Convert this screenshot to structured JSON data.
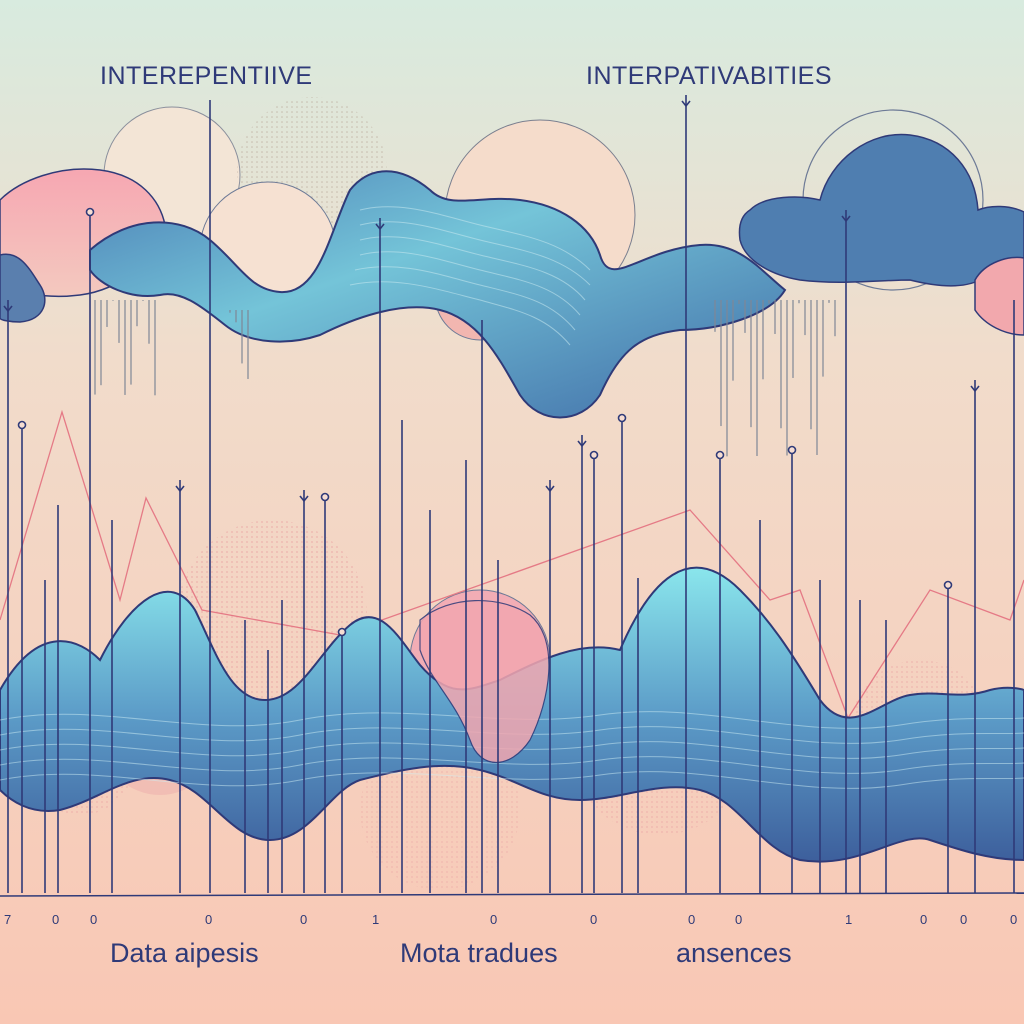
{
  "headings": {
    "left": "INTEREPENTIIVE",
    "right": "INTERPATIVABITIES"
  },
  "bottom_labels": {
    "left": "Data aipesis",
    "center": "Mota tradues",
    "right": "ansences"
  },
  "axis_ticks": [
    "7",
    "0",
    "0",
    "0",
    "0",
    "1",
    "0",
    "0",
    "0",
    "0",
    "1",
    "0",
    "0",
    "0"
  ],
  "colors": {
    "background_top": "#d9eadf",
    "background_bottom": "#f8c9b6",
    "wave_fill": "#5f93c4",
    "wave_fill_light": "#7fd2e0",
    "wave_outline": "#2f3a78",
    "blob_pink": "#f2a8ad",
    "accent_red": "#e57a86",
    "ink": "#2f3a78"
  }
}
